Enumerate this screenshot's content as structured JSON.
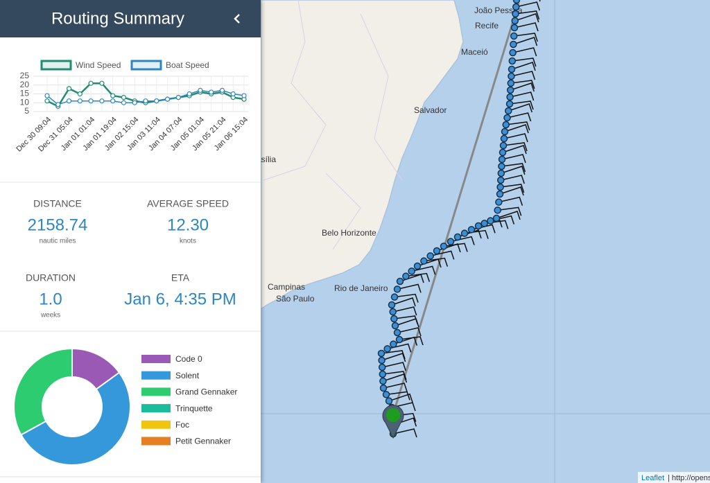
{
  "sidebar": {
    "title": "Routing Summary",
    "stats": [
      {
        "label": "DISTANCE",
        "value": "2158.74",
        "unit": "nautic miles"
      },
      {
        "label": "AVERAGE SPEED",
        "value": "12.30",
        "unit": "knots"
      },
      {
        "label": "DURATION",
        "value": "1.0",
        "unit": "weeks"
      },
      {
        "label": "ETA",
        "value": "Jan 6, 4:35 PM"
      }
    ]
  },
  "chart_data": [
    {
      "type": "line",
      "categories": [
        "Dec 30 09:04",
        null,
        "Dec 31 05:04",
        null,
        "Jan 01 01:04",
        null,
        "Jan 01 19:04",
        null,
        "Jan 02 15:04",
        null,
        "Jan 03 11:04",
        null,
        "Jan 04 07:04",
        null,
        "Jan 05 01:04",
        null,
        "Jan 05 21:04",
        null,
        "Jan 06 15:04"
      ],
      "series": [
        {
          "name": "Wind Speed",
          "color": "#1e8c6e",
          "values": [
            11,
            8,
            18,
            15,
            21,
            21,
            14,
            13,
            11,
            10,
            11,
            12,
            13,
            14,
            16,
            15,
            16,
            13,
            12
          ]
        },
        {
          "name": "Boat Speed",
          "color": "#2e86c1",
          "values": [
            14,
            9,
            11,
            11,
            11,
            11,
            11,
            10,
            10,
            11,
            11,
            12,
            13,
            15,
            17,
            16,
            17,
            15,
            14
          ]
        }
      ],
      "ylim": [
        5,
        25
      ],
      "yticks": [
        5,
        10,
        15,
        20,
        25
      ],
      "grid": true,
      "legend": "top"
    },
    {
      "type": "pie",
      "categories": [
        "Code 0",
        "Solent",
        "Grand Gennaker",
        "Trinquette",
        "Foc",
        "Petit Gennaker"
      ],
      "values": [
        15,
        52,
        33,
        0,
        0,
        0
      ],
      "colors": [
        "#9b59b6",
        "#3498db",
        "#2ecc71",
        "#1abc9c",
        "#f1c40f",
        "#e67e22"
      ],
      "legend": "right"
    }
  ],
  "map": {
    "places": [
      "João Pessoa",
      "Recife",
      "Maceió",
      "Salvador",
      "Brasília",
      "Belo Horizonte",
      "Campinas",
      "São Paulo",
      "Rio de Janeiro"
    ],
    "attribution": {
      "link": "Leaflet",
      "text": "| http://openstreetmap.org/copyright"
    }
  }
}
